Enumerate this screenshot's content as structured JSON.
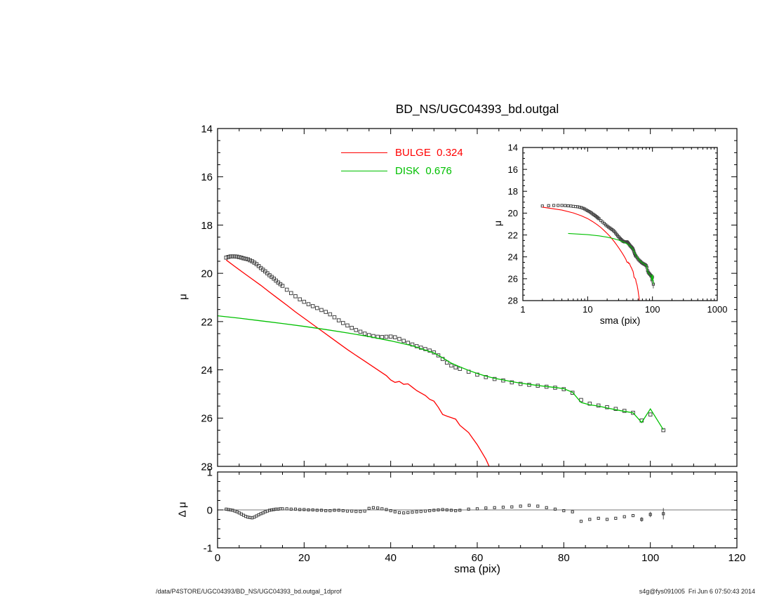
{
  "page": {
    "title": "BD_NS/UGC04393_bd.outgal",
    "footer_left": "/data/P4STORE/UGC04393/BD_NS/UGC04393_bd.outgal_1dprof",
    "footer_right": "s4g@fys091005  Fri Jun 6 07:50:43 2014",
    "background": "#ffffff"
  },
  "colors": {
    "bulge_red": "#ff0000",
    "disk_green": "#00c000",
    "data_gray": "#444444",
    "axis_black": "#000000"
  },
  "profiles": {
    "obs": {
      "x": [
        2,
        2.5,
        3,
        3.5,
        4,
        4.5,
        5,
        5.5,
        6,
        6.5,
        7,
        7.5,
        8,
        8.5,
        9,
        9.5,
        10,
        10.5,
        11,
        11.5,
        12,
        12.5,
        13,
        13.5,
        14,
        14.5,
        15,
        16,
        17,
        18,
        19,
        20,
        21,
        22,
        23,
        24,
        25,
        26,
        27,
        28,
        29,
        30,
        31,
        32,
        33,
        34,
        35,
        36,
        37,
        38,
        39,
        40,
        41,
        42,
        43,
        44,
        45,
        46,
        47,
        48,
        49,
        50,
        51,
        52,
        53,
        54,
        55,
        56,
        58,
        60,
        62,
        64,
        66,
        68,
        70,
        72,
        74,
        76,
        78,
        80,
        82,
        84,
        86,
        88,
        90,
        92,
        94,
        96,
        98,
        100,
        103
      ],
      "y": [
        19.35,
        19.32,
        19.3,
        19.3,
        19.3,
        19.31,
        19.33,
        19.35,
        19.38,
        19.4,
        19.42,
        19.46,
        19.5,
        19.56,
        19.62,
        19.7,
        19.78,
        19.85,
        19.92,
        20.0,
        20.08,
        20.15,
        20.22,
        20.3,
        20.38,
        20.45,
        20.52,
        20.68,
        20.82,
        20.95,
        21.08,
        21.18,
        21.28,
        21.36,
        21.44,
        21.52,
        21.6,
        21.7,
        21.82,
        21.95,
        22.06,
        22.16,
        22.26,
        22.35,
        22.42,
        22.5,
        22.56,
        22.6,
        22.63,
        22.64,
        22.63,
        22.62,
        22.65,
        22.72,
        22.8,
        22.88,
        22.95,
        23.02,
        23.08,
        23.14,
        23.2,
        23.28,
        23.4,
        23.55,
        23.7,
        23.82,
        23.9,
        23.96,
        24.08,
        24.2,
        24.3,
        24.38,
        24.44,
        24.52,
        24.58,
        24.62,
        24.66,
        24.7,
        24.74,
        24.8,
        24.95,
        25.25,
        25.4,
        25.48,
        25.55,
        25.62,
        25.7,
        25.78,
        26.1,
        25.85,
        26.5
      ],
      "err": [
        0,
        0,
        0,
        0,
        0,
        0,
        0,
        0,
        0,
        0,
        0,
        0,
        0,
        0,
        0,
        0,
        0,
        0,
        0,
        0,
        0,
        0,
        0,
        0,
        0,
        0,
        0,
        0,
        0,
        0,
        0,
        0,
        0,
        0,
        0,
        0,
        0,
        0,
        0,
        0,
        0,
        0,
        0,
        0,
        0,
        0,
        0,
        0,
        0,
        0,
        0,
        0,
        0,
        0,
        0,
        0,
        0,
        0,
        0,
        0,
        0,
        0,
        0,
        0,
        0,
        0,
        0,
        0,
        0.04,
        0.05,
        0.05,
        0.06,
        0.06,
        0.07,
        0.07,
        0.08,
        0.08,
        0.09,
        0.09,
        0.1,
        0.12,
        0.15,
        0.16,
        0.17,
        0.18,
        0.2,
        0.22,
        0.24,
        0.3,
        0.25,
        0.38
      ]
    },
    "bulge": {
      "x": [
        2,
        4,
        6,
        8,
        10,
        12,
        14,
        16,
        18,
        20,
        22,
        24,
        26,
        28,
        30,
        32,
        34,
        36,
        38,
        39,
        40,
        41,
        42,
        43,
        44,
        45,
        46,
        47,
        48,
        49,
        50,
        51,
        52,
        53,
        54,
        55,
        56,
        57,
        58,
        59,
        60,
        61,
        62,
        63
      ],
      "y": [
        19.45,
        19.72,
        19.98,
        20.24,
        20.5,
        20.78,
        21.05,
        21.32,
        21.6,
        21.86,
        22.12,
        22.38,
        22.64,
        22.9,
        23.16,
        23.4,
        23.64,
        23.88,
        24.12,
        24.24,
        24.42,
        24.52,
        24.48,
        24.6,
        24.58,
        24.72,
        24.86,
        24.96,
        25.06,
        25.22,
        25.3,
        25.55,
        25.85,
        25.92,
        25.98,
        26.04,
        26.3,
        26.45,
        26.6,
        26.85,
        27.1,
        27.4,
        27.7,
        28.1
      ]
    },
    "disk": {
      "x": [
        0,
        5,
        10,
        15,
        20,
        25,
        30,
        35,
        40,
        45,
        50,
        52,
        54,
        56,
        58,
        60,
        62,
        64,
        66,
        68,
        70,
        72,
        74,
        76,
        78,
        80,
        82,
        84,
        86,
        88,
        90,
        92,
        94,
        96,
        98,
        100,
        103
      ],
      "y": [
        21.76,
        21.86,
        21.97,
        22.08,
        22.2,
        22.33,
        22.47,
        22.62,
        22.8,
        23.0,
        23.3,
        23.5,
        23.72,
        23.88,
        24.02,
        24.15,
        24.26,
        24.35,
        24.42,
        24.49,
        24.55,
        24.6,
        24.65,
        24.69,
        24.73,
        24.78,
        24.93,
        25.35,
        25.45,
        25.5,
        25.58,
        25.65,
        25.72,
        25.78,
        26.18,
        25.62,
        26.48
      ]
    },
    "resid": {
      "x": [
        2,
        2.5,
        3,
        3.5,
        4,
        4.5,
        5,
        5.5,
        6,
        6.5,
        7,
        7.5,
        8,
        8.5,
        9,
        9.5,
        10,
        10.5,
        11,
        11.5,
        12,
        12.5,
        13,
        13.5,
        14,
        14.5,
        15,
        16,
        17,
        18,
        19,
        20,
        21,
        22,
        23,
        24,
        25,
        26,
        27,
        28,
        29,
        30,
        31,
        32,
        33,
        34,
        35,
        36,
        37,
        38,
        39,
        40,
        41,
        42,
        43,
        44,
        45,
        46,
        47,
        48,
        49,
        50,
        51,
        52,
        53,
        54,
        55,
        56,
        58,
        60,
        62,
        64,
        66,
        68,
        70,
        72,
        74,
        76,
        78,
        80,
        82,
        84,
        86,
        88,
        90,
        92,
        94,
        96,
        98,
        100,
        103
      ],
      "y": [
        0.02,
        0.01,
        0.0,
        -0.01,
        -0.03,
        -0.05,
        -0.08,
        -0.11,
        -0.14,
        -0.17,
        -0.19,
        -0.2,
        -0.21,
        -0.19,
        -0.16,
        -0.13,
        -0.1,
        -0.08,
        -0.05,
        -0.03,
        -0.01,
        0.0,
        0.01,
        0.02,
        0.02,
        0.03,
        0.03,
        0.03,
        0.02,
        0.02,
        0.01,
        0.01,
        0.0,
        0.0,
        -0.01,
        -0.01,
        -0.02,
        -0.02,
        -0.01,
        -0.01,
        -0.02,
        -0.03,
        -0.03,
        -0.04,
        -0.04,
        -0.03,
        0.04,
        0.06,
        0.05,
        0.03,
        0.01,
        -0.02,
        -0.05,
        -0.07,
        -0.08,
        -0.07,
        -0.06,
        -0.05,
        -0.04,
        -0.03,
        -0.02,
        -0.01,
        0.0,
        0.01,
        0.0,
        -0.01,
        -0.02,
        -0.01,
        0.02,
        0.03,
        0.05,
        0.06,
        0.07,
        0.08,
        0.1,
        0.12,
        0.1,
        0.06,
        0.02,
        -0.02,
        -0.05,
        -0.3,
        -0.25,
        -0.22,
        -0.25,
        -0.22,
        -0.18,
        -0.15,
        -0.25,
        -0.12,
        -0.1
      ],
      "err": [
        0,
        0,
        0,
        0,
        0,
        0,
        0,
        0,
        0,
        0,
        0,
        0,
        0,
        0,
        0,
        0,
        0,
        0,
        0,
        0,
        0,
        0,
        0,
        0,
        0,
        0,
        0,
        0,
        0,
        0,
        0,
        0,
        0,
        0,
        0,
        0,
        0,
        0,
        0,
        0,
        0,
        0,
        0,
        0,
        0,
        0,
        0,
        0,
        0,
        0,
        0,
        0,
        0,
        0,
        0,
        0,
        0,
        0,
        0,
        0,
        0,
        0,
        0,
        0,
        0,
        0,
        0,
        0,
        0,
        0,
        0,
        0,
        0,
        0,
        0,
        0,
        0,
        0,
        0,
        0,
        0,
        0,
        0,
        0,
        0,
        0,
        0,
        0,
        0.06,
        0.07,
        0.15
      ]
    }
  },
  "chart_data": [
    {
      "id": "main",
      "type": "line",
      "title": "BD_NS/UGC04393_bd.outgal",
      "xlabel": "",
      "ylabel": "μ",
      "xlim": [
        0,
        120
      ],
      "ylim": [
        14,
        28
      ],
      "xticks": [
        0,
        20,
        40,
        60,
        80,
        100,
        120
      ],
      "xminor": 5,
      "xtick_show": false,
      "yticks": [
        14,
        16,
        18,
        20,
        22,
        24,
        26,
        28
      ],
      "yminor": 0.5,
      "grid": false,
      "legend_position": "inside-top-center",
      "legend": [
        {
          "label": "BULGE  0.324",
          "color": "#ff0000"
        },
        {
          "label": "DISK  0.676",
          "color": "#00c000"
        }
      ],
      "series": [
        {
          "name": "observed profile",
          "ref": "obs",
          "style": "squares",
          "color": "#444444",
          "size": 4.6
        },
        {
          "name": "BULGE model",
          "ref": "bulge",
          "style": "line",
          "color": "#ff0000",
          "width": 1.3
        },
        {
          "name": "DISK model",
          "ref": "disk",
          "style": "line",
          "color": "#00c000",
          "width": 1.3
        }
      ]
    },
    {
      "id": "inset",
      "type": "line",
      "xscale": "log",
      "xlabel": "sma (pix)",
      "ylabel": "μ",
      "xlim": [
        1,
        1000
      ],
      "ylim": [
        14,
        28
      ],
      "xticks": [
        1,
        10,
        100,
        1000
      ],
      "xtick_labels": [
        "1",
        "10",
        "100",
        "1000"
      ],
      "xtick_show": true,
      "yticks": [
        14,
        16,
        18,
        20,
        22,
        24,
        26,
        28
      ],
      "yminor": 0.5,
      "grid": false,
      "series": [
        {
          "name": "observed profile",
          "ref": "obs",
          "style": "squares",
          "color": "#444444",
          "size": 3.2,
          "show_err": true
        },
        {
          "name": "BULGE model",
          "ref": "bulge",
          "style": "line",
          "color": "#ff0000",
          "width": 1.1
        },
        {
          "name": "DISK model",
          "ref": "disk",
          "style": "line",
          "color": "#00c000",
          "width": 1.1
        }
      ]
    },
    {
      "id": "resid",
      "type": "scatter",
      "xlabel": "sma (pix)",
      "ylabel": "Δ μ",
      "xlim": [
        0,
        120
      ],
      "ylim": [
        1,
        -1
      ],
      "xticks": [
        0,
        20,
        40,
        60,
        80,
        100,
        120
      ],
      "xminor": 5,
      "xtick_show": true,
      "yticks": [
        1,
        0,
        -1
      ],
      "yminor": 0.25,
      "zero_line": true,
      "grid": false,
      "series": [
        {
          "name": "residual",
          "ref": "resid",
          "style": "squares",
          "color": "#3a3a3a",
          "size": 3.2,
          "show_err": true
        }
      ]
    }
  ]
}
